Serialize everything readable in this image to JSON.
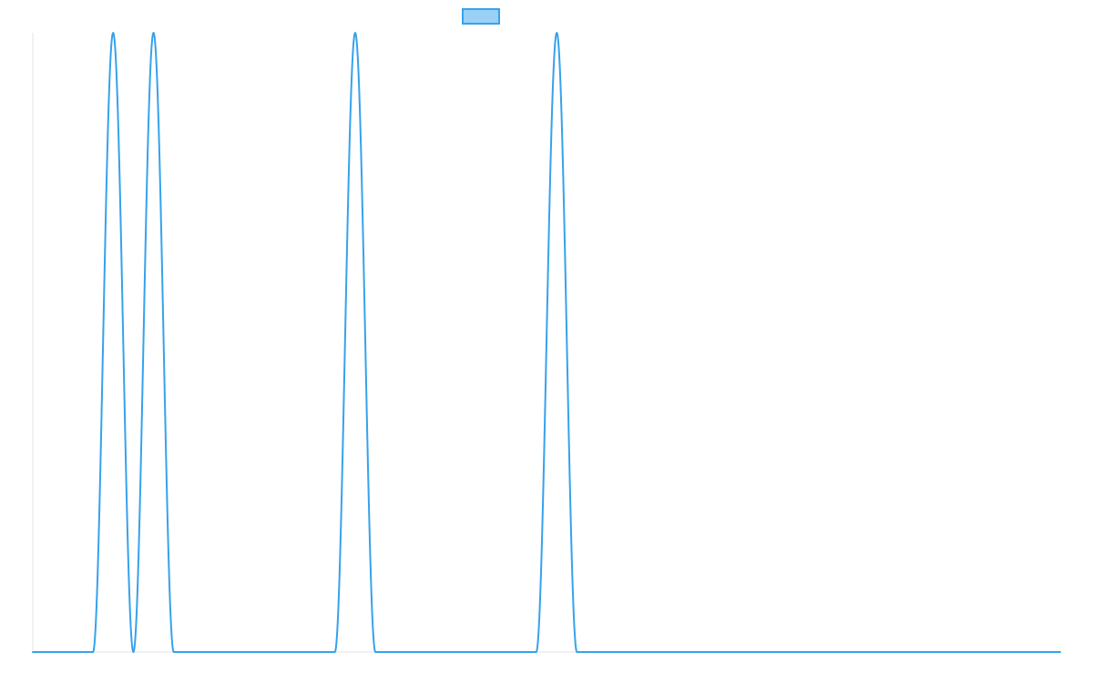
{
  "chart_data": {
    "type": "line",
    "title": "",
    "xlabel": "",
    "ylabel": "",
    "xlim": [
      0,
      1000
    ],
    "ylim": [
      0,
      1
    ],
    "grid": false,
    "legend": {
      "position": "top-center",
      "entries": [
        {
          "label": "",
          "color": "#36a2eb",
          "fill": "#9ad0f5"
        }
      ]
    },
    "series": [
      {
        "color": "#36a2eb",
        "points": [
          [
            0,
            0
          ],
          [
            58.6,
            0
          ],
          [
            78.2,
            1
          ],
          [
            97.9,
            0
          ],
          [
            117.5,
            1
          ],
          [
            137.2,
            0
          ],
          [
            294,
            0
          ],
          [
            313.8,
            1
          ],
          [
            333.5,
            0
          ],
          [
            490,
            0
          ],
          [
            510,
            1
          ],
          [
            529.6,
            0
          ],
          [
            1000,
            0
          ]
        ],
        "shape": "sine-peaks"
      }
    ]
  }
}
